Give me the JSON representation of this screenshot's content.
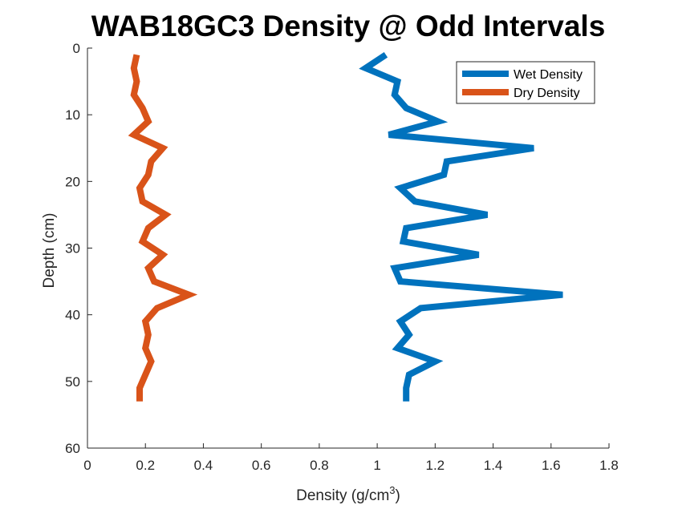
{
  "chart_data": {
    "type": "line",
    "title": "WAB18GC3 Density @ Odd Intervals",
    "xlabel": "Density (g/cm",
    "xlabel_superscript": "3",
    "xlabel_suffix": ")",
    "ylabel": "Depth (cm)",
    "xlim": [
      0,
      1.8
    ],
    "ylim": [
      0,
      60
    ],
    "y_reversed": true,
    "grid": false,
    "legend_position": "top-right",
    "x_ticks": [
      0,
      0.2,
      0.4,
      0.6,
      0.8,
      1,
      1.2,
      1.4,
      1.6,
      1.8
    ],
    "x_tick_labels": [
      "0",
      "0.2",
      "0.4",
      "0.6",
      "0.8",
      "1",
      "1.2",
      "1.4",
      "1.6",
      "1.8"
    ],
    "y_ticks": [
      0,
      10,
      20,
      30,
      40,
      50,
      60
    ],
    "y_tick_labels": [
      "0",
      "10",
      "20",
      "30",
      "40",
      "50",
      "60"
    ],
    "series": [
      {
        "name": "Wet Density",
        "color": "#0072BD",
        "points": [
          [
            1.03,
            1
          ],
          [
            0.96,
            3
          ],
          [
            1.07,
            5
          ],
          [
            1.06,
            7
          ],
          [
            1.1,
            9
          ],
          [
            1.21,
            11
          ],
          [
            1.04,
            13
          ],
          [
            1.54,
            15
          ],
          [
            1.24,
            17
          ],
          [
            1.23,
            19
          ],
          [
            1.08,
            21
          ],
          [
            1.13,
            23
          ],
          [
            1.38,
            25
          ],
          [
            1.1,
            27
          ],
          [
            1.09,
            29
          ],
          [
            1.35,
            31
          ],
          [
            1.06,
            33
          ],
          [
            1.08,
            35
          ],
          [
            1.64,
            37
          ],
          [
            1.15,
            39
          ],
          [
            1.08,
            41
          ],
          [
            1.11,
            43
          ],
          [
            1.07,
            45
          ],
          [
            1.2,
            47
          ],
          [
            1.11,
            49
          ],
          [
            1.1,
            51
          ],
          [
            1.1,
            53
          ]
        ]
      },
      {
        "name": "Dry Density",
        "color": "#D95319",
        "points": [
          [
            0.17,
            1
          ],
          [
            0.16,
            3
          ],
          [
            0.17,
            5
          ],
          [
            0.16,
            7
          ],
          [
            0.19,
            9
          ],
          [
            0.21,
            11
          ],
          [
            0.16,
            13
          ],
          [
            0.26,
            15
          ],
          [
            0.22,
            17
          ],
          [
            0.21,
            19
          ],
          [
            0.18,
            21
          ],
          [
            0.19,
            23
          ],
          [
            0.27,
            25
          ],
          [
            0.21,
            27
          ],
          [
            0.19,
            29
          ],
          [
            0.26,
            31
          ],
          [
            0.21,
            33
          ],
          [
            0.23,
            35
          ],
          [
            0.35,
            37
          ],
          [
            0.24,
            39
          ],
          [
            0.2,
            41
          ],
          [
            0.21,
            43
          ],
          [
            0.2,
            45
          ],
          [
            0.22,
            47
          ],
          [
            0.2,
            49
          ],
          [
            0.18,
            51
          ],
          [
            0.18,
            53
          ]
        ]
      }
    ]
  }
}
